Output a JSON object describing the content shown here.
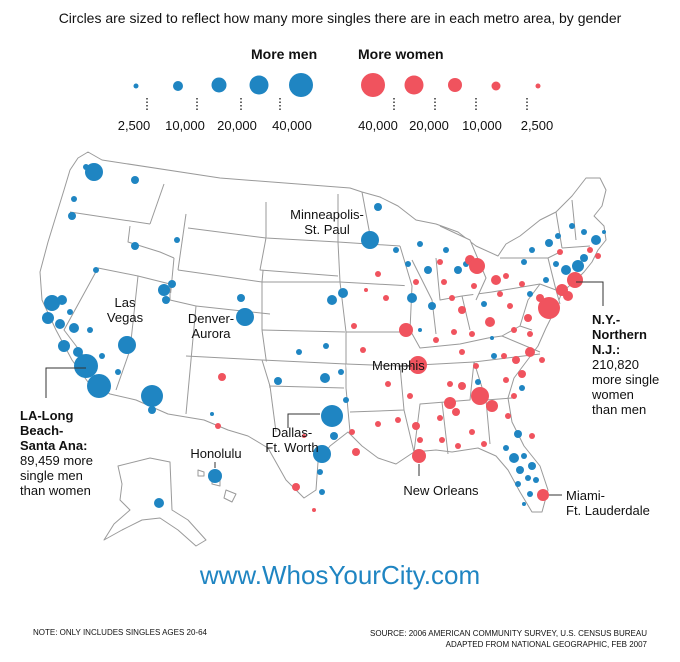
{
  "subtitle": "Circles are sized to reflect how many more singles there are in each metro area, by gender",
  "legend": {
    "men_heading": "More men",
    "women_heading": "More women",
    "men_ticks": [
      "2,500",
      "10,000",
      "20,000",
      "40,000"
    ],
    "women_ticks": [
      "40,000",
      "20,000",
      "10,000",
      "2,500"
    ]
  },
  "colors": {
    "men": "#1f85c2",
    "women": "#f0535e",
    "state_fill": "#ffffff",
    "state_stroke": "#9a9a9a"
  },
  "labels": {
    "minneapolis": "Minneapolis-\nSt. Paul",
    "las_vegas": "Las\nVegas",
    "denver": "Denver-\nAurora",
    "memphis": "Memphis",
    "dallas": "Dallas-\nFt. Worth",
    "honolulu": "Honolulu",
    "new_orleans": "New Orleans",
    "miami": "Miami-\nFt. Lauderdale"
  },
  "callouts": {
    "la": {
      "title": "LA-Long\nBeach-\nSanta Ana:",
      "text": "89,459 more\nsingle men\nthan women"
    },
    "ny": {
      "title": "N.Y.-\nNorthern\nN.J.:",
      "text": "210,820\nmore single\nwomen\nthan men"
    }
  },
  "website": "www.WhosYourCity.com",
  "note": "NOTE: ONLY INCLUDES SINGLES AGES 20-64",
  "source_line1": "SOURCE: 2006 AMERICAN COMMUNITY SURVEY, U.S. CENSUS BUREAU",
  "source_line2": "ADAPTED FROM NATIONAL GEOGRAPHIC, FEB 2007"
}
